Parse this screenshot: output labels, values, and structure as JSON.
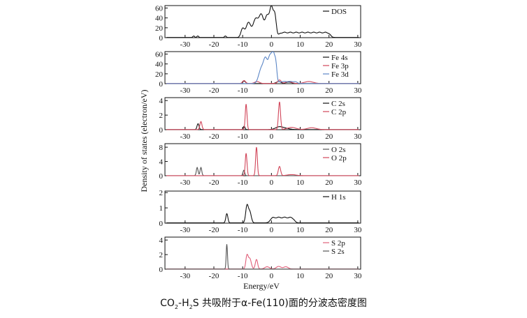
{
  "figure": {
    "ylabel": "Density of states (electron/eV)",
    "xlabel": "Energy/eV"
  },
  "caption": {
    "part1": "CO",
    "sub1": "2",
    "part2": "-H",
    "sub2": "2",
    "part3": "S 共吸附于α-Fe(110)面的分波态密度图"
  },
  "colors": {
    "black": "#111111",
    "red": "#d1465a",
    "blue": "#5b86c6",
    "gray": "#555555",
    "pink": "#e0607a"
  },
  "chart_data": [
    {
      "type": "line",
      "panel": "DOS",
      "x_ticks": [
        -30,
        -20,
        -10,
        0,
        10,
        20,
        30
      ],
      "xlim": [
        -37,
        31
      ],
      "ylim": [
        0,
        65
      ],
      "y_ticks": [
        0,
        20,
        40,
        60
      ],
      "legend": [
        "DOS"
      ],
      "series": [
        {
          "name": "DOS",
          "color": "#111111",
          "baseline": 0.4,
          "peaks": [
            [
              -27,
              3,
              0.3
            ],
            [
              -25.6,
              3,
              0.3
            ],
            [
              -16,
              3,
              0.3
            ],
            [
              -10,
              18,
              0.6
            ],
            [
              -8,
              30,
              0.8
            ],
            [
              -5.5,
              37,
              0.9
            ],
            [
              -3.5,
              44,
              0.8
            ],
            [
              -1.5,
              42,
              0.7
            ],
            [
              0,
              58,
              0.6
            ],
            [
              1.2,
              42,
              0.5
            ]
          ],
          "plateaus": [
            [
              2.5,
              20.5,
              10
            ]
          ]
        }
      ]
    },
    {
      "type": "line",
      "panel": "Fe",
      "x_ticks": [
        -30,
        -20,
        -10,
        0,
        10,
        20,
        30
      ],
      "xlim": [
        -37,
        31
      ],
      "ylim": [
        0,
        65
      ],
      "y_ticks": [
        0,
        20,
        40,
        60
      ],
      "legend": [
        "Fe 4s",
        "Fe 3p",
        "Fe 3d"
      ],
      "series": [
        {
          "name": "Fe 4s",
          "color": "#111111",
          "baseline": 0.3,
          "peaks": [
            [
              -9.5,
              5,
              0.5
            ],
            [
              2.5,
              4,
              0.8
            ],
            [
              6,
              3,
              1
            ]
          ],
          "plateaus": []
        },
        {
          "name": "Fe 3p",
          "color": "#d1465a",
          "baseline": 0.4,
          "peaks": [
            [
              -9.5,
              6,
              0.5
            ],
            [
              -5,
              4,
              0.8
            ],
            [
              2.8,
              7,
              0.6
            ],
            [
              6,
              4,
              1
            ],
            [
              13,
              4,
              1.5
            ]
          ],
          "plateaus": []
        },
        {
          "name": "Fe 3d",
          "color": "#5b86c6",
          "baseline": 0.3,
          "peaks": [
            [
              -3.5,
              30,
              0.9
            ],
            [
              -2,
              44,
              0.7
            ],
            [
              -0.5,
              50,
              0.6
            ],
            [
              0.6,
              55,
              0.5
            ],
            [
              1.5,
              38,
              0.4
            ]
          ],
          "plateaus": [
            [
              2.5,
              9,
              4
            ]
          ]
        }
      ]
    },
    {
      "type": "line",
      "panel": "C",
      "x_ticks": [
        -30,
        -20,
        -10,
        0,
        10,
        20,
        30
      ],
      "xlim": [
        -37,
        31
      ],
      "ylim": [
        0,
        4.4
      ],
      "y_ticks": [
        0,
        2,
        4
      ],
      "legend": [
        "C 2s",
        "C 2p"
      ],
      "series": [
        {
          "name": "C 2s",
          "color": "#111111",
          "baseline": 0.02,
          "peaks": [
            [
              -25.5,
              0.8,
              0.35
            ],
            [
              -9.5,
              0.45,
              0.3
            ],
            [
              2.5,
              0.3,
              1.2
            ],
            [
              4.5,
              0.2,
              1.5
            ]
          ],
          "plateaus": []
        },
        {
          "name": "C 2p",
          "color": "#d1465a",
          "baseline": 0.02,
          "peaks": [
            [
              -24.5,
              1.1,
              0.35
            ],
            [
              -8.8,
              3.5,
              0.3
            ],
            [
              2.8,
              3.8,
              0.35
            ],
            [
              7,
              0.3,
              1.5
            ],
            [
              14,
              0.25,
              1.5
            ]
          ],
          "plateaus": []
        }
      ]
    },
    {
      "type": "line",
      "panel": "O",
      "x_ticks": [
        -30,
        -20,
        -10,
        0,
        10,
        20,
        30
      ],
      "xlim": [
        -37,
        31
      ],
      "ylim": [
        0,
        9
      ],
      "y_ticks": [
        0,
        4,
        8
      ],
      "legend": [
        "O 2s",
        "O 2p"
      ],
      "series": [
        {
          "name": "O 2s",
          "color": "#555555",
          "baseline": 0.02,
          "peaks": [
            [
              -25.8,
              2.3,
              0.3
            ],
            [
              -24.5,
              2.3,
              0.3
            ],
            [
              -9.6,
              1.5,
              0.3
            ]
          ],
          "plateaus": []
        },
        {
          "name": "O 2p",
          "color": "#d1465a",
          "baseline": 0.02,
          "peaks": [
            [
              -8.8,
              6.3,
              0.3
            ],
            [
              -5.2,
              8,
              0.3
            ],
            [
              2.8,
              2.6,
              0.4
            ],
            [
              7,
              0.3,
              1.5
            ]
          ],
          "plateaus": []
        }
      ]
    },
    {
      "type": "line",
      "panel": "H",
      "x_ticks": [
        -30,
        -20,
        -10,
        0,
        10,
        20,
        30
      ],
      "xlim": [
        -37,
        31
      ],
      "ylim": [
        0,
        2.1
      ],
      "y_ticks": [
        0,
        1,
        2
      ],
      "legend": [
        "H 1s"
      ],
      "series": [
        {
          "name": "H 1s",
          "color": "#111111",
          "baseline": 0.02,
          "peaks": [
            [
              -15.5,
              0.6,
              0.35
            ],
            [
              -8.5,
              1.1,
              0.45
            ],
            [
              -7.5,
              0.7,
              0.5
            ]
          ],
          "plateaus": [
            [
              -0.5,
              8,
              0.35
            ]
          ]
        }
      ]
    },
    {
      "type": "line",
      "panel": "S",
      "x_ticks": [
        -30,
        -20,
        -10,
        0,
        10,
        20,
        30
      ],
      "xlim": [
        -37,
        31
      ],
      "ylim": [
        0,
        4.4
      ],
      "y_ticks": [
        0,
        2,
        4
      ],
      "legend": [
        "S 2p",
        "S 2s"
      ],
      "series": [
        {
          "name": "S 2p",
          "color": "#e0607a",
          "baseline": 0.03,
          "peaks": [
            [
              -8.5,
              1.8,
              0.4
            ],
            [
              -7.5,
              1.4,
              0.5
            ],
            [
              -5.2,
              1.3,
              0.4
            ],
            [
              -1.5,
              0.3,
              0.8
            ],
            [
              2.5,
              0.35,
              0.8
            ],
            [
              5,
              0.3,
              0.8
            ]
          ],
          "plateaus": []
        },
        {
          "name": "S 2s",
          "color": "#555555",
          "baseline": 0.02,
          "peaks": [
            [
              -15.5,
              3.4,
              0.22
            ]
          ],
          "plateaus": []
        }
      ]
    }
  ]
}
